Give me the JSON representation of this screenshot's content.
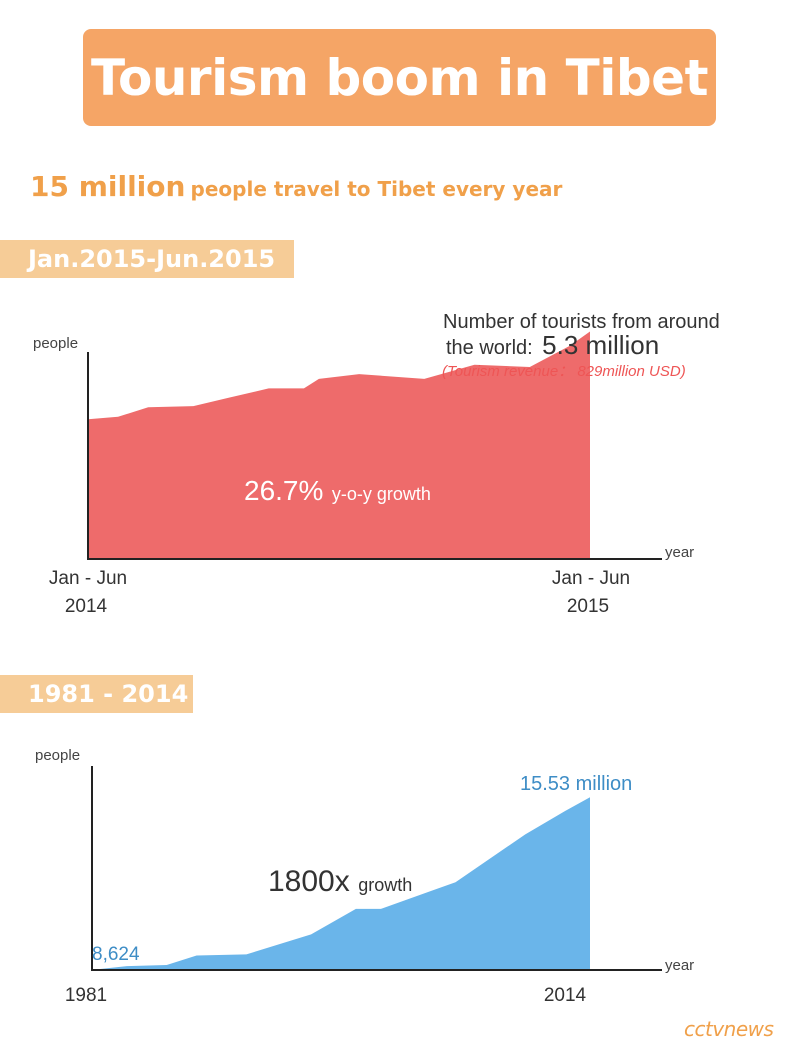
{
  "title": "Tourism boom in Tibet",
  "subtitle": {
    "highlight": "15 million",
    "rest": "people travel to Tibet every year"
  },
  "chart_data": [
    {
      "type": "area",
      "period_label": "Jan.2015-Jun.2015",
      "ylabel": "people",
      "xlabel": "year",
      "x_start_label_line1": "Jan - Jun",
      "x_start_label_line2": "2014",
      "x_end_label_line1": "Jan - Jun",
      "x_end_label_line2": "2015",
      "ylim": [
        0,
        100
      ],
      "x": [
        0,
        0.06,
        0.12,
        0.21,
        0.28,
        0.36,
        0.43,
        0.46,
        0.54,
        0.67,
        0.77,
        0.88,
        0.96,
        1.0
      ],
      "values": [
        59,
        60,
        64,
        64.5,
        68,
        72,
        72,
        76,
        78,
        76,
        82,
        81,
        90,
        96
      ],
      "annotation_line1": "Number of tourists from around",
      "annotation_line2_prefix": "the world:",
      "annotation_value": "5.3 million",
      "annotation_revenue": "(Tourism revenue： 829million USD)",
      "growth_value": "26.7%",
      "growth_label": "y-o-y growth",
      "fill_color": "#ee6b6b",
      "revenue_color": "#ee5555"
    },
    {
      "type": "area",
      "period_label": "1981 - 2014",
      "ylabel": "people",
      "xlabel": "year",
      "x_start_label": "1981",
      "x_end_label": "2014",
      "ylim": [
        0,
        17
      ],
      "x": [
        0,
        0.07,
        0.15,
        0.21,
        0.31,
        0.44,
        0.53,
        0.58,
        0.73,
        0.87,
        0.95,
        1.0
      ],
      "values": [
        0.008624,
        0.35,
        0.45,
        1.3,
        1.4,
        3.2,
        5.5,
        5.5,
        7.9,
        12.2,
        14.3,
        15.53
      ],
      "start_value_label": "8,624",
      "end_value_label": "15.53 million",
      "growth_value": "1800x",
      "growth_label": "growth",
      "fill_color": "#6ab5ea",
      "label_color": "#3e8dc6"
    }
  ],
  "source_logo": "cctvnews"
}
